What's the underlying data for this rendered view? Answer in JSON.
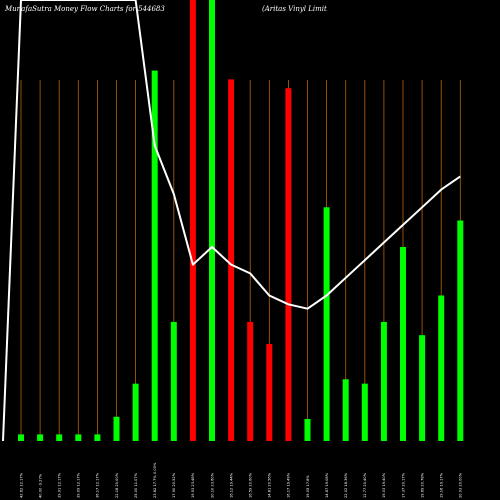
{
  "header": {
    "title_left": "MunafaSutra  Money Flow  Charts for 544683",
    "title_right": "(Aritas Vinyl Limit"
  },
  "colors": {
    "background": "#000000",
    "up_bar": "#00ff00",
    "down_bar": "#ff0000",
    "gridline": "#b8640a",
    "line": "#ffffff",
    "text": "#ffffff"
  },
  "chart_data": {
    "type": "bar",
    "title": "MunafaSutra  Money Flow  Charts for 544683",
    "grid": true,
    "ylim": [
      0,
      100
    ],
    "categories": [
      "42.62 12.17%",
      "40.00 -9.27%",
      "39.91 12.17%",
      "39.09 12.17%",
      "36.17 12.17%",
      "22.18 20.00%",
      "25.00 11.07%",
      "23.82 17.7% 0.00%",
      "17.90 20.52%",
      "19.53 23.48%",
      "20.10 23.60%",
      "16.12 19.44%",
      "16.59 20.60%",
      "14.81 20.56%",
      "16.17 19.49%",
      "19.05 17.8%",
      "14.67 19.08%",
      "22.02 18.36%",
      "12.77 20.40%",
      "19.03 19.40%",
      "17.37 20.17%",
      "19.69 20.78%",
      "19.16 19.17%",
      "20.03 20.00%"
    ],
    "values": [
      1.5,
      1.5,
      1.5,
      1.5,
      1.5,
      5.5,
      13,
      84,
      27,
      100,
      100,
      82,
      27,
      22,
      80,
      5,
      53,
      14,
      13,
      27,
      44,
      24,
      33,
      50
    ],
    "bar_colors": [
      "green",
      "green",
      "green",
      "green",
      "green",
      "green",
      "green",
      "green",
      "green",
      "red",
      "green",
      "red",
      "red",
      "red",
      "red",
      "green",
      "green",
      "green",
      "green",
      "green",
      "green",
      "green",
      "green",
      "green"
    ],
    "line_values": [
      100,
      100,
      100,
      100,
      100,
      100,
      100,
      67,
      56,
      40,
      44,
      40,
      38,
      33,
      31,
      30,
      33,
      37,
      41,
      45,
      49,
      53,
      57,
      60
    ]
  }
}
